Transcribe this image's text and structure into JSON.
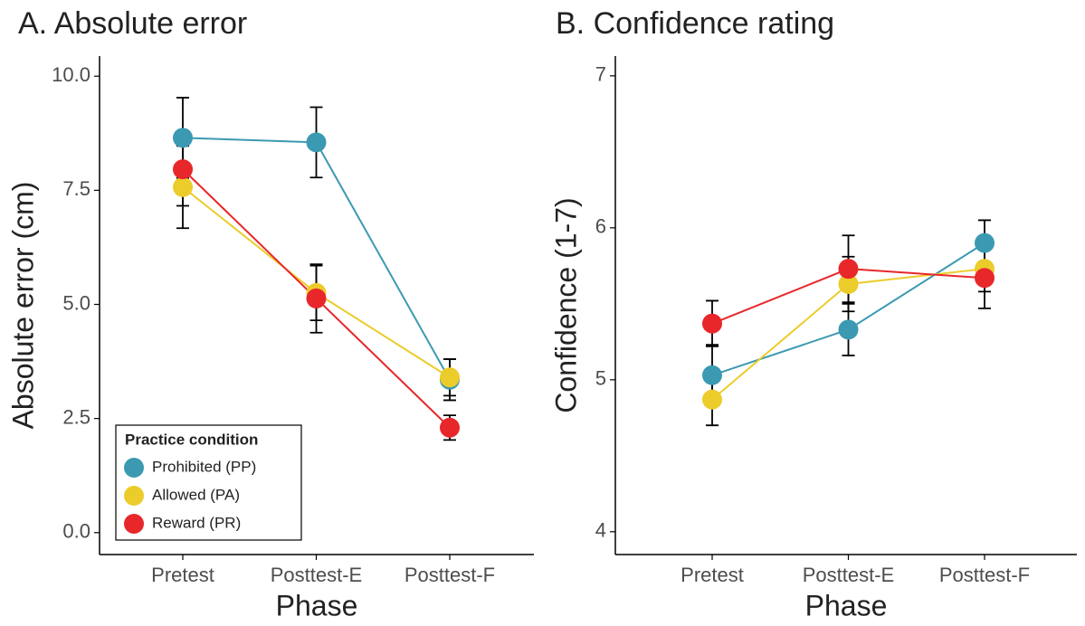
{
  "chart_data": [
    {
      "type": "line",
      "title": "A. Absolute error",
      "x_label": "Phase",
      "y_label": "Absolute error (cm)",
      "categories": [
        "Pretest",
        "Posttest-E",
        "Posttest-F"
      ],
      "ylim": [
        -0.48,
        10.44
      ],
      "yticks": [
        {
          "value": 0,
          "label": "0.0"
        },
        2.5,
        {
          "value": 5,
          "label": "5.0"
        },
        7.5,
        {
          "value": 10,
          "label": "10.0"
        }
      ],
      "legend": "lower left",
      "legend_title": "Practice condition",
      "series": [
        {
          "name": "Prohibited (PP)",
          "color": "#3b9ab2",
          "values": [
            8.65,
            8.55,
            3.35
          ],
          "errors": [
            0.88,
            0.77,
            0.45
          ]
        },
        {
          "name": "Allowed (PA)",
          "color": "#ebcc2a",
          "values": [
            7.57,
            5.25,
            3.4
          ],
          "errors": [
            0.9,
            0.6,
            0.4
          ]
        },
        {
          "name": "Reward (PR)",
          "color": "#e8272a",
          "values": [
            7.96,
            5.13,
            2.3
          ],
          "errors": [
            0.8,
            0.75,
            0.27
          ]
        }
      ]
    },
    {
      "type": "line",
      "title": "B. Confidence rating",
      "x_label": "Phase",
      "y_label": "Confidence (1-7)",
      "categories": [
        "Pretest",
        "Posttest-E",
        "Posttest-F"
      ],
      "ylim": [
        3.85,
        7.13
      ],
      "yticks": [
        4,
        5,
        6,
        7
      ],
      "series": [
        {
          "name": "Prohibited (PP)",
          "color": "#3b9ab2",
          "values": [
            5.03,
            5.33,
            5.9
          ],
          "errors": [
            0.2,
            0.17,
            0.15
          ]
        },
        {
          "name": "Allowed (PA)",
          "color": "#ebcc2a",
          "values": [
            4.87,
            5.63,
            5.73
          ],
          "errors": [
            0.17,
            0.18,
            0.15
          ]
        },
        {
          "name": "Reward (PR)",
          "color": "#e8272a",
          "values": [
            5.37,
            5.73,
            5.67
          ],
          "errors": [
            0.15,
            0.22,
            0.2
          ]
        }
      ]
    }
  ]
}
